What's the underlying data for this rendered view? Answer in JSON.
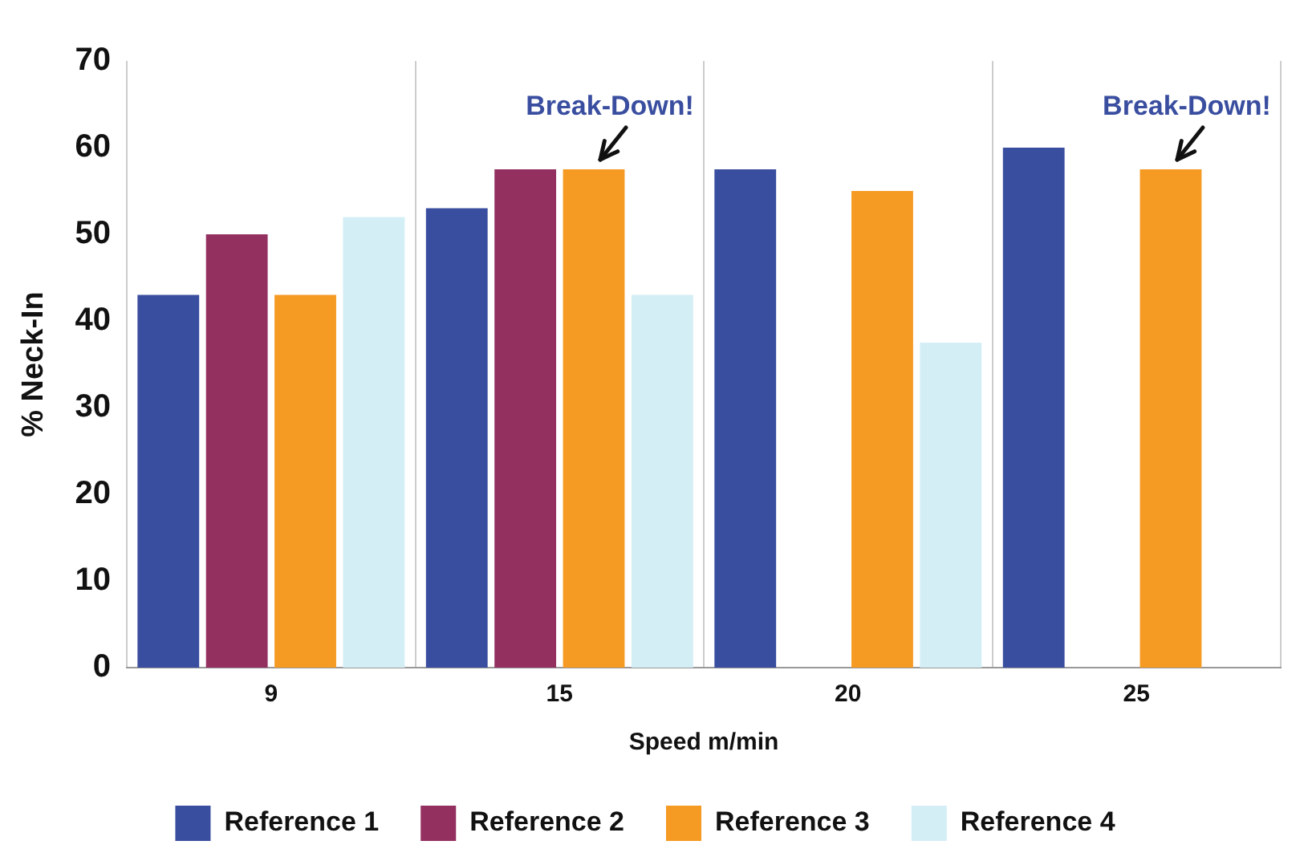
{
  "chart_data": {
    "type": "bar",
    "xlabel": "Speed m/min",
    "ylabel": "% Neck-In",
    "categories": [
      "9",
      "15",
      "20",
      "25"
    ],
    "series": [
      {
        "name": "Reference 1",
        "color": "#3a4ea0",
        "values": [
          43,
          53,
          57.5,
          60
        ]
      },
      {
        "name": "Reference 2",
        "color": "#933060",
        "values": [
          50,
          57.5,
          null,
          null
        ]
      },
      {
        "name": "Reference 3",
        "color": "#f59a23",
        "values": [
          43,
          57.5,
          55,
          57.5
        ]
      },
      {
        "name": "Reference 4",
        "color": "#d4eef5",
        "values": [
          52,
          43,
          37.5,
          null
        ]
      }
    ],
    "ylim": [
      0,
      70
    ],
    "yticks": [
      0,
      10,
      20,
      30,
      40,
      50,
      60,
      70
    ],
    "grid": "x",
    "legend": "bottom",
    "annotations": [
      {
        "text": "Break-Down!",
        "x": "15",
        "y": 57.5
      },
      {
        "text": "Break-Down!",
        "x": "25",
        "y": 57.5
      }
    ]
  }
}
